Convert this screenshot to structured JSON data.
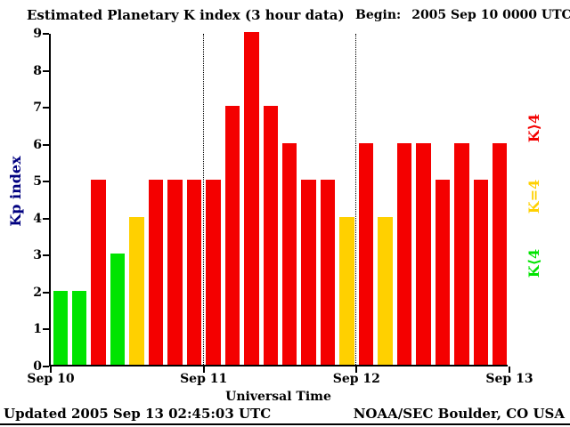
{
  "header": {
    "title": "Estimated Planetary K index (3 hour data)",
    "begin_label": "Begin:",
    "begin_value": "2005 Sep 10 0000 UTC"
  },
  "footer": {
    "updated": "Updated 2005 Sep 13 02:45:03 UTC",
    "source": "NOAA/SEC Boulder, CO USA"
  },
  "legend": [
    {
      "label": "K⟩4",
      "color": "#f40000"
    },
    {
      "label": "K=4",
      "color": "#ffd000"
    },
    {
      "label": "K⟨4",
      "color": "#00e400"
    }
  ],
  "chart_data": {
    "type": "bar",
    "title": "Estimated Planetary K index (3 hour data)",
    "xlabel": "Universal Time",
    "ylabel": "Kp index",
    "ylim": [
      0,
      9
    ],
    "yticks": [
      0,
      1,
      2,
      3,
      4,
      5,
      6,
      7,
      8,
      9
    ],
    "x_day_labels": [
      "Sep 10",
      "Sep 11",
      "Sep 12",
      "Sep 13"
    ],
    "hours_per_bar": 3,
    "begin": "2005 Sep 10 0000 UTC",
    "values": [
      2,
      2,
      5,
      3,
      4,
      5,
      5,
      5,
      5,
      7,
      9,
      7,
      6,
      5,
      5,
      4,
      6,
      4,
      6,
      6,
      5,
      6,
      5,
      6
    ],
    "bar_colors": {
      "below_4": "#00e400",
      "equal_4": "#ffd000",
      "above_4": "#f40000"
    },
    "grid": "dotted vertical day dividers",
    "legend_position": "right"
  }
}
